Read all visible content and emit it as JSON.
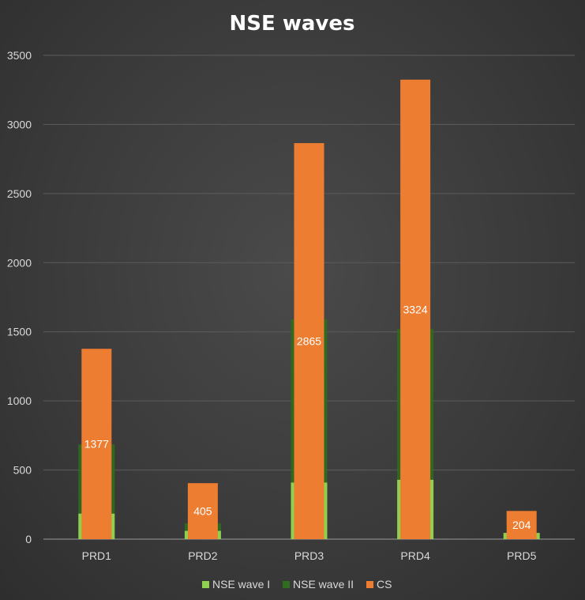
{
  "chart_data": {
    "type": "bar",
    "title": "NSE waves",
    "categories": [
      "PRD1",
      "PRD2",
      "PRD3",
      "PRD4",
      "PRD5"
    ],
    "series": [
      {
        "name": "NSE wave I",
        "values": [
          185,
          60,
          410,
          430,
          45
        ],
        "color": "#8fd14f"
      },
      {
        "name": "NSE wave II",
        "values": [
          500,
          55,
          1180,
          1090,
          0
        ],
        "color": "#2e6e1e"
      },
      {
        "name": "CS",
        "values": [
          1377,
          405,
          2865,
          3324,
          204
        ],
        "color": "#ed7d31"
      }
    ],
    "data_labels": [
      "1377",
      "405",
      "2865",
      "3324",
      "204"
    ],
    "ylim": [
      0,
      3500
    ],
    "yticks": [
      0,
      500,
      1000,
      1500,
      2000,
      2500,
      3000,
      3500
    ],
    "grid": true,
    "legend_position": "bottom"
  }
}
